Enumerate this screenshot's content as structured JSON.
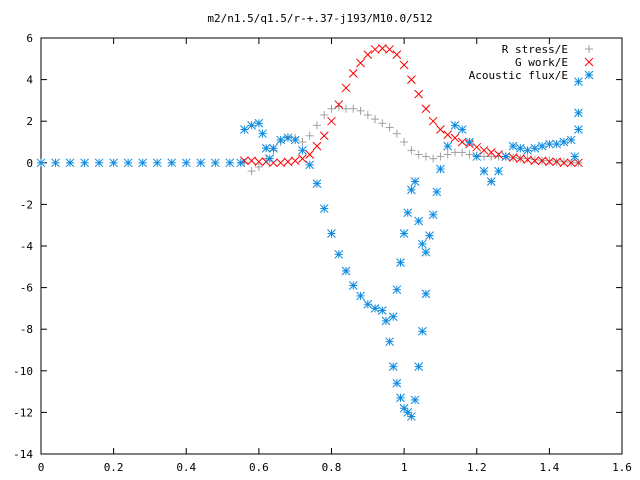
{
  "chart_data": {
    "type": "scatter",
    "title": "m2/n1.5/q1.5/r-+.37-j193/M10.0/512",
    "xlabel": "",
    "ylabel": "",
    "xlim": [
      0,
      1.6
    ],
    "ylim": [
      -14,
      6
    ],
    "x_ticks": [
      "0",
      "0.2",
      "0.4",
      "0.6",
      "0.8",
      "1",
      "1.2",
      "1.4",
      "1.6"
    ],
    "y_ticks": [
      "6",
      "4",
      "2",
      "0",
      "-2",
      "-4",
      "-6",
      "-8",
      "-10",
      "-12",
      "-14"
    ],
    "grid": false,
    "legend_position": "top-right",
    "series": [
      {
        "name": "R stress/E",
        "marker": "plus",
        "color": "#a0a0a0",
        "points": [
          [
            0.56,
            0.0
          ],
          [
            0.58,
            -0.4
          ],
          [
            0.6,
            -0.2
          ],
          [
            0.62,
            0.2
          ],
          [
            0.64,
            0.6
          ],
          [
            0.66,
            1.0
          ],
          [
            0.68,
            1.25
          ],
          [
            0.7,
            1.2
          ],
          [
            0.72,
            1.0
          ],
          [
            0.74,
            1.3
          ],
          [
            0.76,
            1.8
          ],
          [
            0.78,
            2.3
          ],
          [
            0.8,
            2.6
          ],
          [
            0.82,
            2.7
          ],
          [
            0.84,
            2.6
          ],
          [
            0.86,
            2.6
          ],
          [
            0.88,
            2.5
          ],
          [
            0.9,
            2.3
          ],
          [
            0.92,
            2.1
          ],
          [
            0.94,
            1.9
          ],
          [
            0.96,
            1.7
          ],
          [
            0.98,
            1.4
          ],
          [
            1.0,
            1.0
          ],
          [
            1.02,
            0.6
          ],
          [
            1.04,
            0.4
          ],
          [
            1.06,
            0.3
          ],
          [
            1.08,
            0.2
          ],
          [
            1.1,
            0.3
          ],
          [
            1.12,
            0.4
          ],
          [
            1.14,
            0.5
          ],
          [
            1.16,
            0.5
          ],
          [
            1.18,
            0.4
          ],
          [
            1.2,
            0.35
          ],
          [
            1.22,
            0.3
          ],
          [
            1.24,
            0.3
          ],
          [
            1.26,
            0.3
          ],
          [
            1.28,
            0.3
          ],
          [
            1.3,
            0.25
          ],
          [
            1.32,
            0.2
          ],
          [
            1.34,
            0.2
          ],
          [
            1.36,
            0.15
          ],
          [
            1.38,
            0.1
          ],
          [
            1.4,
            0.1
          ],
          [
            1.42,
            0.05
          ],
          [
            1.44,
            0.05
          ],
          [
            1.46,
            0.0
          ],
          [
            1.48,
            0.0
          ]
        ]
      },
      {
        "name": "G work/E",
        "marker": "cross",
        "color": "#ff0000",
        "points": [
          [
            0.56,
            0.1
          ],
          [
            0.58,
            0.1
          ],
          [
            0.6,
            0.05
          ],
          [
            0.62,
            0.05
          ],
          [
            0.64,
            0.0
          ],
          [
            0.66,
            0.0
          ],
          [
            0.68,
            0.05
          ],
          [
            0.7,
            0.1
          ],
          [
            0.72,
            0.2
          ],
          [
            0.74,
            0.4
          ],
          [
            0.76,
            0.8
          ],
          [
            0.78,
            1.3
          ],
          [
            0.8,
            2.0
          ],
          [
            0.82,
            2.8
          ],
          [
            0.84,
            3.6
          ],
          [
            0.86,
            4.3
          ],
          [
            0.88,
            4.8
          ],
          [
            0.9,
            5.2
          ],
          [
            0.92,
            5.45
          ],
          [
            0.94,
            5.5
          ],
          [
            0.96,
            5.45
          ],
          [
            0.98,
            5.2
          ],
          [
            1.0,
            4.7
          ],
          [
            1.02,
            4.0
          ],
          [
            1.04,
            3.3
          ],
          [
            1.06,
            2.6
          ],
          [
            1.08,
            2.0
          ],
          [
            1.1,
            1.6
          ],
          [
            1.12,
            1.35
          ],
          [
            1.14,
            1.2
          ],
          [
            1.16,
            1.0
          ],
          [
            1.18,
            0.9
          ],
          [
            1.2,
            0.75
          ],
          [
            1.22,
            0.6
          ],
          [
            1.24,
            0.5
          ],
          [
            1.26,
            0.4
          ],
          [
            1.28,
            0.3
          ],
          [
            1.3,
            0.25
          ],
          [
            1.32,
            0.2
          ],
          [
            1.34,
            0.15
          ],
          [
            1.36,
            0.1
          ],
          [
            1.38,
            0.1
          ],
          [
            1.4,
            0.05
          ],
          [
            1.42,
            0.05
          ],
          [
            1.44,
            0.0
          ],
          [
            1.46,
            0.0
          ],
          [
            1.48,
            0.0
          ]
        ]
      },
      {
        "name": "Acoustic flux/E",
        "marker": "star",
        "color": "#0a8ae0",
        "points": [
          [
            0.0,
            0.0
          ],
          [
            0.04,
            0.0
          ],
          [
            0.08,
            0.0
          ],
          [
            0.12,
            0.0
          ],
          [
            0.16,
            0.0
          ],
          [
            0.2,
            0.0
          ],
          [
            0.24,
            0.0
          ],
          [
            0.28,
            0.0
          ],
          [
            0.32,
            0.0
          ],
          [
            0.36,
            0.0
          ],
          [
            0.4,
            0.0
          ],
          [
            0.44,
            0.0
          ],
          [
            0.48,
            0.0
          ],
          [
            0.52,
            0.0
          ],
          [
            0.55,
            0.0
          ],
          [
            0.56,
            1.6
          ],
          [
            0.58,
            1.8
          ],
          [
            0.6,
            1.9
          ],
          [
            0.61,
            1.4
          ],
          [
            0.62,
            0.7
          ],
          [
            0.63,
            0.2
          ],
          [
            0.64,
            0.7
          ],
          [
            0.66,
            1.1
          ],
          [
            0.68,
            1.2
          ],
          [
            0.7,
            1.1
          ],
          [
            0.72,
            0.6
          ],
          [
            0.74,
            -0.1
          ],
          [
            0.76,
            -1.0
          ],
          [
            0.78,
            -2.2
          ],
          [
            0.8,
            -3.4
          ],
          [
            0.82,
            -4.4
          ],
          [
            0.84,
            -5.2
          ],
          [
            0.86,
            -5.9
          ],
          [
            0.88,
            -6.4
          ],
          [
            0.9,
            -6.8
          ],
          [
            0.92,
            -7.0
          ],
          [
            0.94,
            -7.1
          ],
          [
            0.95,
            -7.6
          ],
          [
            0.96,
            -8.6
          ],
          [
            0.97,
            -7.4
          ],
          [
            0.97,
            -9.8
          ],
          [
            0.98,
            -6.1
          ],
          [
            0.98,
            -10.6
          ],
          [
            0.99,
            -4.8
          ],
          [
            0.99,
            -11.3
          ],
          [
            1.0,
            -3.4
          ],
          [
            1.0,
            -11.8
          ],
          [
            1.01,
            -2.4
          ],
          [
            1.01,
            -12.0
          ],
          [
            1.02,
            -1.3
          ],
          [
            1.02,
            -12.2
          ],
          [
            1.03,
            -0.9
          ],
          [
            1.03,
            -11.4
          ],
          [
            1.04,
            -2.8
          ],
          [
            1.04,
            -9.8
          ],
          [
            1.05,
            -3.9
          ],
          [
            1.05,
            -8.1
          ],
          [
            1.06,
            -4.3
          ],
          [
            1.06,
            -6.3
          ],
          [
            1.07,
            -3.5
          ],
          [
            1.08,
            -2.5
          ],
          [
            1.09,
            -1.4
          ],
          [
            1.1,
            -0.3
          ],
          [
            1.12,
            0.8
          ],
          [
            1.14,
            1.8
          ],
          [
            1.16,
            1.6
          ],
          [
            1.18,
            1.0
          ],
          [
            1.2,
            0.3
          ],
          [
            1.22,
            -0.4
          ],
          [
            1.24,
            -0.9
          ],
          [
            1.26,
            -0.4
          ],
          [
            1.28,
            0.3
          ],
          [
            1.3,
            0.8
          ],
          [
            1.32,
            0.7
          ],
          [
            1.34,
            0.6
          ],
          [
            1.36,
            0.7
          ],
          [
            1.38,
            0.8
          ],
          [
            1.4,
            0.9
          ],
          [
            1.42,
            0.9
          ],
          [
            1.44,
            1.0
          ],
          [
            1.46,
            1.1
          ],
          [
            1.47,
            0.3
          ],
          [
            1.48,
            1.6
          ],
          [
            1.48,
            2.4
          ],
          [
            1.48,
            3.9
          ]
        ]
      }
    ]
  }
}
